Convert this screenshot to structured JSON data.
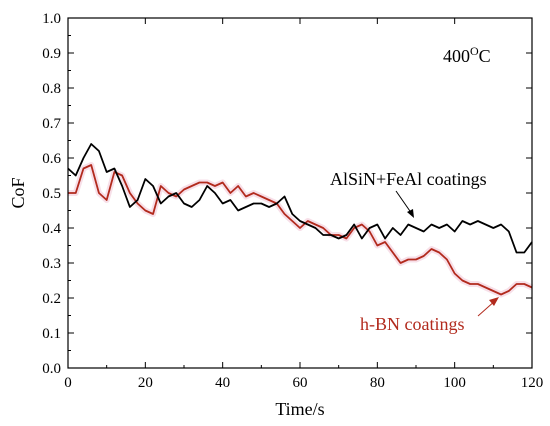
{
  "chart_data": {
    "type": "line",
    "xlabel": "Time/s",
    "ylabel": "CoF",
    "xlim": [
      0,
      120
    ],
    "ylim": [
      0,
      1.0
    ],
    "xticks": [
      "0",
      "20",
      "40",
      "60",
      "80",
      "100",
      "120"
    ],
    "yticks": [
      "0.0",
      "0.1",
      "0.2",
      "0.3",
      "0.4",
      "0.5",
      "0.6",
      "0.7",
      "0.8",
      "0.9",
      "1.0"
    ],
    "temperature_label": "400°C",
    "temperature_value": "400",
    "temperature_unit": "C",
    "grid": false,
    "series": [
      {
        "name": "AlSiN+FeAl coatings",
        "color": "#000000",
        "x": [
          0,
          2,
          4,
          6,
          8,
          10,
          12,
          14,
          16,
          18,
          20,
          22,
          24,
          26,
          28,
          30,
          32,
          34,
          36,
          38,
          40,
          42,
          44,
          46,
          48,
          50,
          52,
          54,
          56,
          58,
          60,
          62,
          64,
          66,
          68,
          70,
          72,
          74,
          76,
          78,
          80,
          82,
          84,
          86,
          88,
          90,
          92,
          94,
          96,
          98,
          100,
          102,
          104,
          106,
          108,
          110,
          112,
          114,
          116,
          118,
          120
        ],
        "values": [
          0.57,
          0.55,
          0.6,
          0.64,
          0.62,
          0.56,
          0.57,
          0.52,
          0.46,
          0.48,
          0.54,
          0.52,
          0.47,
          0.49,
          0.5,
          0.47,
          0.46,
          0.48,
          0.52,
          0.5,
          0.47,
          0.48,
          0.45,
          0.46,
          0.47,
          0.47,
          0.46,
          0.47,
          0.49,
          0.44,
          0.42,
          0.41,
          0.4,
          0.38,
          0.38,
          0.37,
          0.38,
          0.41,
          0.37,
          0.4,
          0.41,
          0.37,
          0.4,
          0.38,
          0.41,
          0.4,
          0.39,
          0.41,
          0.4,
          0.41,
          0.39,
          0.42,
          0.41,
          0.42,
          0.41,
          0.4,
          0.41,
          0.39,
          0.33,
          0.33,
          0.36
        ]
      },
      {
        "name": "h-BN coatings",
        "color": "#b22a1d",
        "x": [
          0,
          2,
          4,
          6,
          8,
          10,
          12,
          14,
          16,
          18,
          20,
          22,
          24,
          26,
          28,
          30,
          32,
          34,
          36,
          38,
          40,
          42,
          44,
          46,
          48,
          50,
          52,
          54,
          56,
          58,
          60,
          62,
          64,
          66,
          68,
          70,
          72,
          74,
          76,
          78,
          80,
          82,
          84,
          86,
          88,
          90,
          92,
          94,
          96,
          98,
          100,
          102,
          104,
          106,
          108,
          110,
          112,
          114,
          116,
          118,
          120
        ],
        "values": [
          0.5,
          0.5,
          0.57,
          0.58,
          0.5,
          0.48,
          0.56,
          0.55,
          0.5,
          0.47,
          0.45,
          0.44,
          0.52,
          0.5,
          0.49,
          0.51,
          0.52,
          0.53,
          0.53,
          0.52,
          0.53,
          0.5,
          0.52,
          0.49,
          0.5,
          0.49,
          0.48,
          0.47,
          0.44,
          0.42,
          0.4,
          0.42,
          0.41,
          0.4,
          0.38,
          0.38,
          0.37,
          0.4,
          0.41,
          0.39,
          0.35,
          0.36,
          0.33,
          0.3,
          0.31,
          0.31,
          0.32,
          0.34,
          0.33,
          0.31,
          0.27,
          0.25,
          0.24,
          0.24,
          0.23,
          0.22,
          0.21,
          0.22,
          0.24,
          0.24,
          0.23
        ]
      }
    ]
  }
}
